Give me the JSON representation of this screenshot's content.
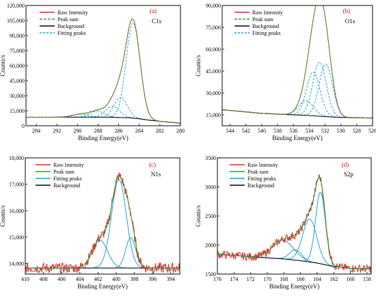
{
  "chart_data": [
    {
      "type": "line",
      "panel_label": "(a)",
      "annotation": "C1s",
      "xlabel": "Binding Energy(eV)",
      "ylabel": "Counts/s",
      "xlim": [
        295,
        280
      ],
      "ylim": [
        0,
        120000
      ],
      "x_ticks": [
        "294",
        "292",
        "290",
        "288",
        "286",
        "284",
        "282",
        "280"
      ],
      "y_ticks": [
        "0",
        "15,000",
        "30,000",
        "45,000",
        "60,000",
        "75,000",
        "90,000",
        "105,000",
        "120,000"
      ],
      "legend": [
        "Raw Intensity",
        "Peak sum",
        "Background",
        "Fitting peaks"
      ],
      "colors": {
        "raw": "#d62728",
        "sum": "#2ca02c",
        "background": "#000000",
        "peaks": "#1f9fd0"
      },
      "background": {
        "x": [
          295,
          290,
          287,
          285,
          284,
          283,
          280
        ],
        "y": [
          8500,
          8600,
          8500,
          8000,
          7000,
          5500,
          2500
        ]
      },
      "peaks": [
        {
          "center": 284.6,
          "height": 95000,
          "fwhm": 1.6
        },
        {
          "center": 285.8,
          "height": 20000,
          "fwhm": 1.5
        },
        {
          "center": 286.6,
          "height": 11000,
          "fwhm": 1.6
        },
        {
          "center": 288.1,
          "height": 6000,
          "fwhm": 1.6
        },
        {
          "center": 289.7,
          "height": 3000,
          "fwhm": 1.8
        }
      ]
    },
    {
      "type": "line",
      "panel_label": "(b)",
      "annotation": "O1s",
      "xlabel": "Binding Energy(eV)",
      "ylabel": "Counts/s",
      "xlim": [
        545,
        526
      ],
      "ylim": [
        7500,
        90000
      ],
      "x_ticks": [
        "544",
        "542",
        "540",
        "538",
        "536",
        "534",
        "532",
        "530",
        "528",
        "526"
      ],
      "y_ticks": [
        "15,000",
        "30,000",
        "45,000",
        "60,000",
        "75,000",
        "90,000"
      ],
      "legend": [
        "Raw Intensity",
        "Peak sum",
        "Background",
        "Fitting peaks"
      ],
      "colors": {
        "raw": "#d62728",
        "sum": "#2ca02c",
        "background": "#000000",
        "peaks": "#1f9fd0"
      },
      "background": {
        "x": [
          545,
          540,
          536,
          534,
          532,
          530,
          526
        ],
        "y": [
          18500,
          16000,
          15000,
          14500,
          13800,
          13200,
          12800
        ]
      },
      "peaks": [
        {
          "center": 531.9,
          "height": 36000,
          "fwhm": 2.0
        },
        {
          "center": 532.7,
          "height": 37000,
          "fwhm": 2.0
        },
        {
          "center": 533.5,
          "height": 30000,
          "fwhm": 2.0
        },
        {
          "center": 534.4,
          "height": 10000,
          "fwhm": 2.2
        }
      ]
    },
    {
      "type": "line",
      "panel_label": "(c)",
      "annotation": "N1s",
      "xlabel": "Binding Energy(eV)",
      "ylabel": "Counts/s",
      "xlim": [
        410,
        393
      ],
      "ylim": [
        13600,
        18000
      ],
      "x_ticks": [
        "410",
        "408",
        "406",
        "404",
        "402",
        "400",
        "398",
        "396",
        "394"
      ],
      "y_ticks": [
        "14,000",
        "15,000",
        "16,000",
        "17,000",
        "18,000"
      ],
      "legend": [
        "Raw Intensity",
        "Peak sum",
        "Fitting peaks",
        "Background"
      ],
      "colors": {
        "raw": "#d62728",
        "sum": "#2ca02c",
        "background": "#000000",
        "peaks": "#1f9fd0"
      },
      "background": {
        "x": [
          410,
          393
        ],
        "y": [
          13830,
          13830
        ]
      },
      "peaks": [
        {
          "center": 401.8,
          "height": 1050,
          "fwhm": 2.0
        },
        {
          "center": 399.7,
          "height": 3350,
          "fwhm": 1.9
        },
        {
          "center": 398.4,
          "height": 1150,
          "fwhm": 1.3
        }
      ]
    },
    {
      "type": "line",
      "panel_label": "(d)",
      "annotation": "S2p",
      "xlabel": "Binding Energy(eV)",
      "ylabel": "Counts/s",
      "xlim": [
        176,
        157.5
      ],
      "ylim": [
        1500,
        3500
      ],
      "x_ticks": [
        "176",
        "174",
        "172",
        "170",
        "168",
        "166",
        "164",
        "162",
        "160",
        "158"
      ],
      "y_ticks": [
        "1500",
        "2000",
        "2500",
        "3000",
        "3500"
      ],
      "legend": [
        "Raw Intensity",
        "Peak sum",
        "Fitting peaks",
        "Background"
      ],
      "colors": {
        "raw": "#d62728",
        "sum": "#2ca02c",
        "background": "#000000",
        "peaks": "#1f9fd0"
      },
      "background": {
        "x": [
          176,
          172,
          168,
          166,
          164,
          162,
          160,
          158
        ],
        "y": [
          1840,
          1800,
          1760,
          1730,
          1690,
          1630,
          1600,
          1590
        ]
      },
      "peaks": [
        {
          "center": 168.1,
          "height": 320,
          "fwhm": 3.0
        },
        {
          "center": 166.6,
          "height": 180,
          "fwhm": 1.7
        },
        {
          "center": 164.9,
          "height": 740,
          "fwhm": 2.0
        },
        {
          "center": 163.6,
          "height": 1230,
          "fwhm": 1.4
        }
      ]
    }
  ]
}
